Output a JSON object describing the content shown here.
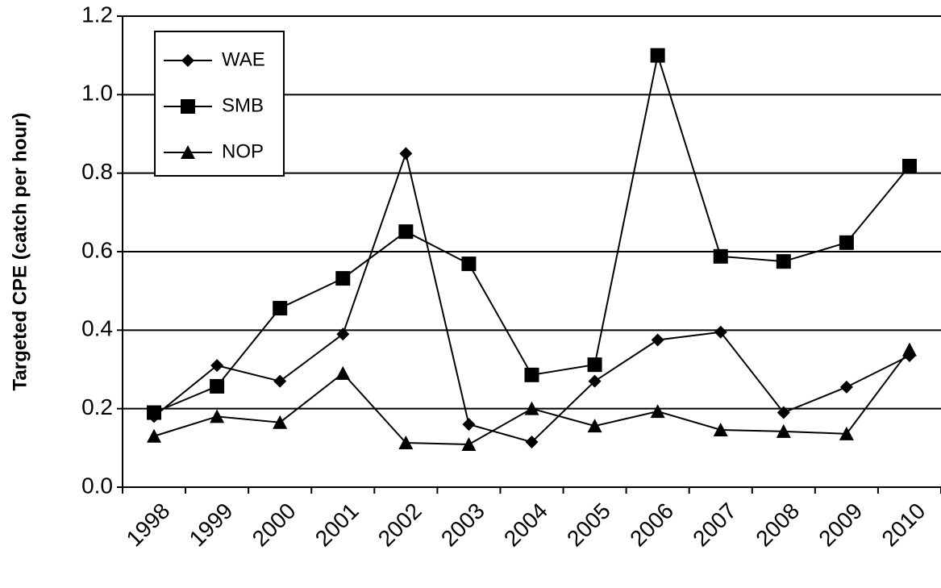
{
  "chart_data": {
    "type": "line",
    "y_label": "Targeted CPE (catch per hour)",
    "categories": [
      "1998",
      "1999",
      "2000",
      "2001",
      "2002",
      "2003",
      "2004",
      "2005",
      "2006",
      "2007",
      "2008",
      "2009",
      "2010"
    ],
    "series": [
      {
        "name": "WAE",
        "color": "#000000",
        "marker": "diamond",
        "values": [
          0.18,
          0.31,
          0.27,
          0.39,
          0.85,
          0.16,
          0.115,
          0.27,
          0.375,
          0.395,
          0.19,
          0.255,
          0.335
        ]
      },
      {
        "name": "SMB",
        "color": "#000000",
        "marker": "square",
        "values": [
          0.19,
          0.257,
          0.456,
          0.532,
          0.651,
          0.569,
          0.286,
          0.312,
          1.1,
          0.588,
          0.575,
          0.623,
          0.818
        ]
      },
      {
        "name": "NOP",
        "color": "#000000",
        "marker": "triangle",
        "values": [
          0.13,
          0.18,
          0.165,
          0.29,
          0.113,
          0.109,
          0.2,
          0.156,
          0.193,
          0.146,
          0.142,
          0.136,
          0.35
        ]
      }
    ],
    "ylim": [
      0,
      1.2
    ],
    "yticks": [
      {
        "value": 0,
        "label": "0.0"
      },
      0.2,
      0.4,
      0.6,
      0.8,
      {
        "value": 1,
        "label": "1.0"
      },
      1.2
    ],
    "grid": true,
    "legend": "top-left"
  }
}
